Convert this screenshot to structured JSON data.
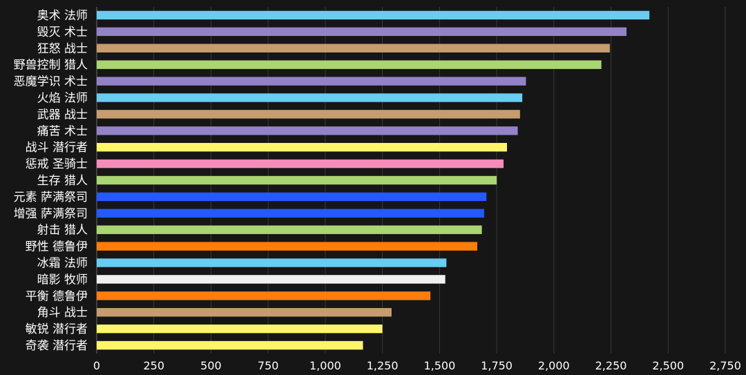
{
  "chart_data": {
    "type": "bar",
    "orientation": "horizontal",
    "title": "",
    "xlabel": "",
    "ylabel": "",
    "xlim": [
      0,
      2750
    ],
    "x_ticks": [
      0,
      250,
      500,
      750,
      1000,
      1250,
      1500,
      1750,
      2000,
      2250,
      2500,
      2750
    ],
    "x_tick_labels": [
      "0",
      "250",
      "500",
      "750",
      "1,000",
      "1,250",
      "1,500",
      "1,750",
      "2,000",
      "2,250",
      "2,500",
      "2,750"
    ],
    "grid": true,
    "background": "#161616",
    "categories": [
      "奥术 法师",
      "毁灭 术士",
      "狂怒 战士",
      "野兽控制 猎人",
      "恶魔学识 术士",
      "火焰 法师",
      "武器 战士",
      "痛苦 术士",
      "战斗 潜行者",
      "惩戒 圣骑士",
      "生存 猎人",
      "元素 萨满祭司",
      "增强 萨满祭司",
      "射击 猎人",
      "野性 德鲁伊",
      "冰霜 法师",
      "暗影 牧师",
      "平衡 德鲁伊",
      "角斗 战士",
      "敏锐 潜行者",
      "奇袭 潜行者"
    ],
    "values": [
      2418,
      2318,
      2245,
      2208,
      1878,
      1862,
      1852,
      1842,
      1795,
      1780,
      1750,
      1705,
      1695,
      1685,
      1665,
      1530,
      1525,
      1460,
      1290,
      1250,
      1165
    ],
    "bar_colors": [
      "#69ccf0",
      "#9482c9",
      "#c79c6e",
      "#abd473",
      "#9482c9",
      "#69ccf0",
      "#c79c6e",
      "#9482c9",
      "#fff569",
      "#f58cba",
      "#abd473",
      "#2459ff",
      "#2459ff",
      "#abd473",
      "#ff7d0a",
      "#69ccf0",
      "#f0f0f0",
      "#ff7d0a",
      "#c79c6e",
      "#fff569",
      "#fff569"
    ]
  }
}
